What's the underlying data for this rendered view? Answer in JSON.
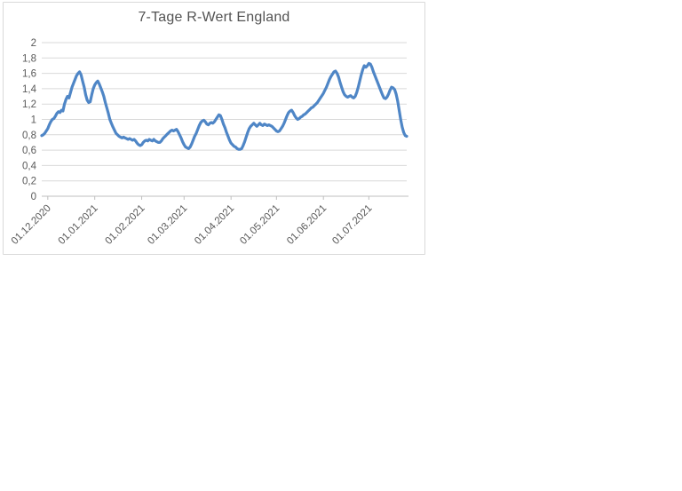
{
  "chart_data": {
    "type": "line",
    "title": "7-Tage R-Wert England",
    "xlabel": "",
    "ylabel": "",
    "ylim": [
      0,
      2
    ],
    "y_tick_step": 0.2,
    "y_tick_labels": [
      "0",
      "0,2",
      "0,4",
      "0,6",
      "0,8",
      "1",
      "1,2",
      "1,4",
      "1,6",
      "1,8",
      "2"
    ],
    "grid": true,
    "legend": "none",
    "x_tick_labels": [
      "01.12.2020",
      "01.01.2021",
      "01.02.2021",
      "01.03.2021",
      "01.04.2021",
      "01.05.2021",
      "01.06.2021",
      "01.07.2021"
    ],
    "x_tick_day_index": [
      4,
      35,
      66,
      94,
      125,
      155,
      186,
      216
    ],
    "x_axis_note": "daily series, day index 0 at left plot edge",
    "values": [
      0.79,
      0.8,
      0.82,
      0.85,
      0.88,
      0.93,
      0.97,
      1.0,
      1.01,
      1.04,
      1.08,
      1.1,
      1.09,
      1.12,
      1.11,
      1.2,
      1.26,
      1.3,
      1.28,
      1.35,
      1.42,
      1.47,
      1.52,
      1.57,
      1.6,
      1.62,
      1.58,
      1.5,
      1.42,
      1.32,
      1.25,
      1.22,
      1.23,
      1.32,
      1.4,
      1.45,
      1.48,
      1.5,
      1.46,
      1.41,
      1.36,
      1.3,
      1.22,
      1.15,
      1.08,
      1.0,
      0.95,
      0.9,
      0.86,
      0.82,
      0.8,
      0.78,
      0.77,
      0.76,
      0.77,
      0.76,
      0.75,
      0.74,
      0.75,
      0.74,
      0.73,
      0.74,
      0.72,
      0.69,
      0.67,
      0.66,
      0.67,
      0.7,
      0.72,
      0.73,
      0.72,
      0.74,
      0.73,
      0.72,
      0.74,
      0.72,
      0.71,
      0.7,
      0.7,
      0.72,
      0.75,
      0.77,
      0.79,
      0.81,
      0.83,
      0.85,
      0.86,
      0.85,
      0.86,
      0.87,
      0.84,
      0.8,
      0.76,
      0.71,
      0.67,
      0.64,
      0.63,
      0.62,
      0.64,
      0.68,
      0.73,
      0.78,
      0.82,
      0.87,
      0.92,
      0.96,
      0.98,
      0.99,
      0.97,
      0.94,
      0.93,
      0.95,
      0.96,
      0.95,
      0.97,
      1.0,
      1.03,
      1.06,
      1.05,
      1.0,
      0.94,
      0.89,
      0.83,
      0.78,
      0.73,
      0.69,
      0.67,
      0.65,
      0.64,
      0.62,
      0.61,
      0.61,
      0.62,
      0.66,
      0.71,
      0.77,
      0.83,
      0.88,
      0.91,
      0.93,
      0.95,
      0.93,
      0.91,
      0.93,
      0.95,
      0.93,
      0.92,
      0.94,
      0.93,
      0.92,
      0.93,
      0.92,
      0.91,
      0.89,
      0.87,
      0.85,
      0.84,
      0.85,
      0.88,
      0.91,
      0.95,
      1.0,
      1.05,
      1.09,
      1.11,
      1.12,
      1.09,
      1.05,
      1.02,
      1.0,
      1.01,
      1.03,
      1.04,
      1.06,
      1.07,
      1.09,
      1.11,
      1.13,
      1.15,
      1.16,
      1.18,
      1.2,
      1.22,
      1.25,
      1.28,
      1.31,
      1.34,
      1.38,
      1.42,
      1.47,
      1.52,
      1.56,
      1.59,
      1.62,
      1.63,
      1.6,
      1.55,
      1.48,
      1.42,
      1.36,
      1.32,
      1.3,
      1.29,
      1.3,
      1.31,
      1.29,
      1.28,
      1.3,
      1.35,
      1.42,
      1.5,
      1.58,
      1.65,
      1.7,
      1.68,
      1.7,
      1.73,
      1.72,
      1.68,
      1.62,
      1.57,
      1.52,
      1.47,
      1.42,
      1.37,
      1.32,
      1.28,
      1.27,
      1.29,
      1.33,
      1.38,
      1.42,
      1.41,
      1.39,
      1.33,
      1.24,
      1.12,
      1.0,
      0.9,
      0.83,
      0.79,
      0.78
    ]
  },
  "colors": {
    "series_line": "#4f86c6",
    "gridline": "#d9d9d9",
    "axis_line": "#bfbfbf",
    "tick_label": "#595959",
    "title_text": "#535353",
    "frame_border": "#d9d9d9",
    "background": "#ffffff"
  }
}
